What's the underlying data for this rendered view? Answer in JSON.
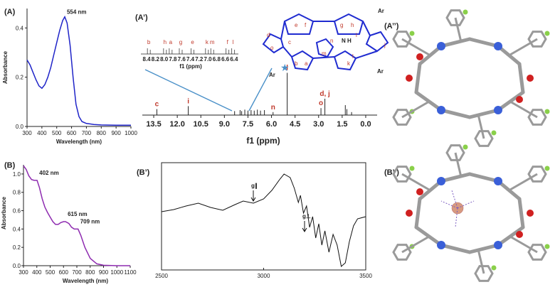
{
  "panels": {
    "A": "(A)",
    "A_prime": "(A’)",
    "A_dprime": "(A’’)",
    "B": "(B)",
    "B_prime": "(B’)",
    "B_dprime": "(B’’)"
  },
  "chart_data": [
    {
      "type": "line",
      "panel": "(A)",
      "xlabel": "Wavelength (nm)",
      "ylabel": "Absorbance",
      "xlim": [
        300,
        1000
      ],
      "ylim": [
        0,
        0.45
      ],
      "xticks": [
        "300",
        "400",
        "500",
        "600",
        "700",
        "800",
        "900",
        "1000"
      ],
      "yticks": [
        "0.0",
        "0.2",
        "0.4"
      ],
      "color": "#1f24c8",
      "x": [
        300,
        320,
        340,
        360,
        380,
        400,
        420,
        440,
        460,
        480,
        500,
        520,
        540,
        554,
        570,
        590,
        610,
        630,
        650,
        670,
        700,
        750,
        800,
        900,
        1000
      ],
      "y": [
        0.27,
        0.25,
        0.22,
        0.19,
        0.165,
        0.155,
        0.17,
        0.2,
        0.24,
        0.29,
        0.34,
        0.39,
        0.43,
        0.445,
        0.42,
        0.33,
        0.2,
        0.09,
        0.04,
        0.02,
        0.012,
        0.008,
        0.006,
        0.005,
        0.005
      ],
      "annotations": [
        {
          "text": "554 nm",
          "x": 554,
          "y": 0.445
        }
      ]
    },
    {
      "type": "line",
      "panel": "(B)",
      "xlabel": "Wavelength (nm)",
      "ylabel": "Absorbance",
      "xlim": [
        300,
        1100
      ],
      "ylim": [
        0,
        1.1
      ],
      "xticks": [
        "300",
        "400",
        "500",
        "600",
        "700",
        "800",
        "900",
        "1000",
        "1100"
      ],
      "yticks": [
        "0.0",
        "0.2",
        "0.4",
        "0.6",
        "0.8",
        "1.0"
      ],
      "color": "#8e2bb0",
      "x": [
        300,
        320,
        340,
        360,
        380,
        402,
        420,
        440,
        460,
        480,
        500,
        520,
        540,
        560,
        580,
        600,
        615,
        640,
        660,
        680,
        700,
        709,
        730,
        760,
        800,
        850,
        900,
        1000,
        1100
      ],
      "y": [
        1.09,
        1.05,
        0.98,
        0.94,
        0.93,
        0.93,
        0.85,
        0.73,
        0.64,
        0.58,
        0.53,
        0.48,
        0.45,
        0.45,
        0.47,
        0.48,
        0.48,
        0.46,
        0.42,
        0.4,
        0.4,
        0.4,
        0.33,
        0.2,
        0.08,
        0.02,
        0.005,
        0.0,
        0.0
      ],
      "annotations": [
        {
          "text": "402 nm",
          "x": 402,
          "y": 0.93
        },
        {
          "text": "615 nm",
          "x": 615,
          "y": 0.48
        },
        {
          "text": "709 nm",
          "x": 709,
          "y": 0.4
        }
      ]
    },
    {
      "type": "line",
      "panel": "(A’)",
      "xlabel": "f1 (ppm)",
      "xlim": [
        14,
        -0.5
      ],
      "xticks": [
        "13.5",
        "12.0",
        "10.5",
        "9.0",
        "7.5",
        "6.0",
        "4.5",
        "3.0",
        "1.5",
        "0.0"
      ],
      "peaks": [
        {
          "x": 13.3,
          "h": 0.12,
          "label": "c"
        },
        {
          "x": 11.3,
          "h": 0.18,
          "label": "i"
        },
        {
          "x": 8.35,
          "h": 0.08
        },
        {
          "x": 8.0,
          "h": 0.1
        },
        {
          "x": 7.9,
          "h": 0.08
        },
        {
          "x": 7.7,
          "h": 0.11
        },
        {
          "x": 7.5,
          "h": 0.09
        },
        {
          "x": 7.3,
          "h": 0.1
        },
        {
          "x": 7.1,
          "h": 0.09
        },
        {
          "x": 6.9,
          "h": 0.11
        },
        {
          "x": 6.7,
          "h": 0.09
        },
        {
          "x": 6.45,
          "h": 0.1
        },
        {
          "x": 5.9,
          "h": 0.06,
          "label": "n"
        },
        {
          "x": 5.0,
          "h": 0.85,
          "label": "l"
        },
        {
          "x": 2.85,
          "h": 0.14,
          "label": "o"
        },
        {
          "x": 2.6,
          "h": 0.33,
          "label": "d, j"
        },
        {
          "x": 1.3,
          "h": 0.2
        },
        {
          "x": 1.2,
          "h": 0.12
        },
        {
          "x": 0.9,
          "h": 0.06
        }
      ],
      "inset": {
        "xlabel": "f1 (ppm)",
        "xticks": [
          "8.4",
          "8.2",
          "8.0",
          "7.8",
          "7.6",
          "7.4",
          "7.2",
          "7.0",
          "6.8",
          "6.6",
          "6.4"
        ],
        "labels": [
          "b",
          "h",
          "a",
          "g",
          "e",
          "k",
          "m",
          "f",
          "l"
        ]
      },
      "star_label": "★"
    },
    {
      "type": "line",
      "panel": "(B’)",
      "xlim": [
        2500,
        3500
      ],
      "xticks": [
        "2500",
        "3000",
        "3500"
      ],
      "annotations": [
        {
          "text": "g∥",
          "x": 2920
        },
        {
          "text": "g⊥",
          "x": 3290
        }
      ]
    }
  ],
  "molecule_labels": {
    "ring_letters": [
      "e",
      "f",
      "g",
      "h",
      "a",
      "b",
      "c",
      "d",
      "i",
      "j",
      "k",
      "l",
      "m",
      "n",
      "o"
    ],
    "substituent": "Ar",
    "nh": "N H"
  }
}
